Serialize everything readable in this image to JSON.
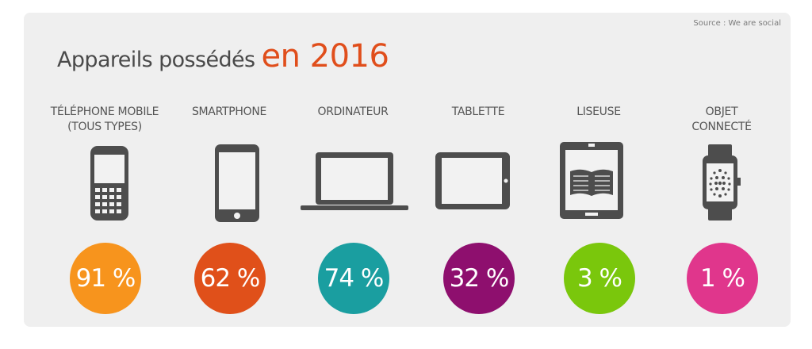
{
  "source": "Source : We are social",
  "title": {
    "main": "Appareils possédés",
    "accent": "en 2016"
  },
  "colors": {
    "title_accent": "#e04e1b",
    "icon": "#4d4d4d",
    "panel": "#efefef"
  },
  "chart_data": {
    "type": "bar",
    "unit": "%",
    "categories": [
      "TÉLÉPHONE MOBILE\n(TOUS TYPES)",
      "SMARTPHONE",
      "ORDINATEUR",
      "TABLETTE",
      "LISEUSE",
      "OBJET\nCONNECTÉ"
    ],
    "values": [
      91,
      62,
      74,
      32,
      3,
      1
    ],
    "value_labels": [
      "91 %",
      "62 %",
      "74 %",
      "32 %",
      "3 %",
      "1 %"
    ],
    "colors": [
      "#f7941d",
      "#e0501a",
      "#1a9ea0",
      "#8e0f6e",
      "#7ac70c",
      "#e0368c"
    ],
    "icons": [
      "feature-phone-icon",
      "smartphone-icon",
      "laptop-icon",
      "tablet-icon",
      "ereader-icon",
      "smartwatch-icon"
    ]
  }
}
